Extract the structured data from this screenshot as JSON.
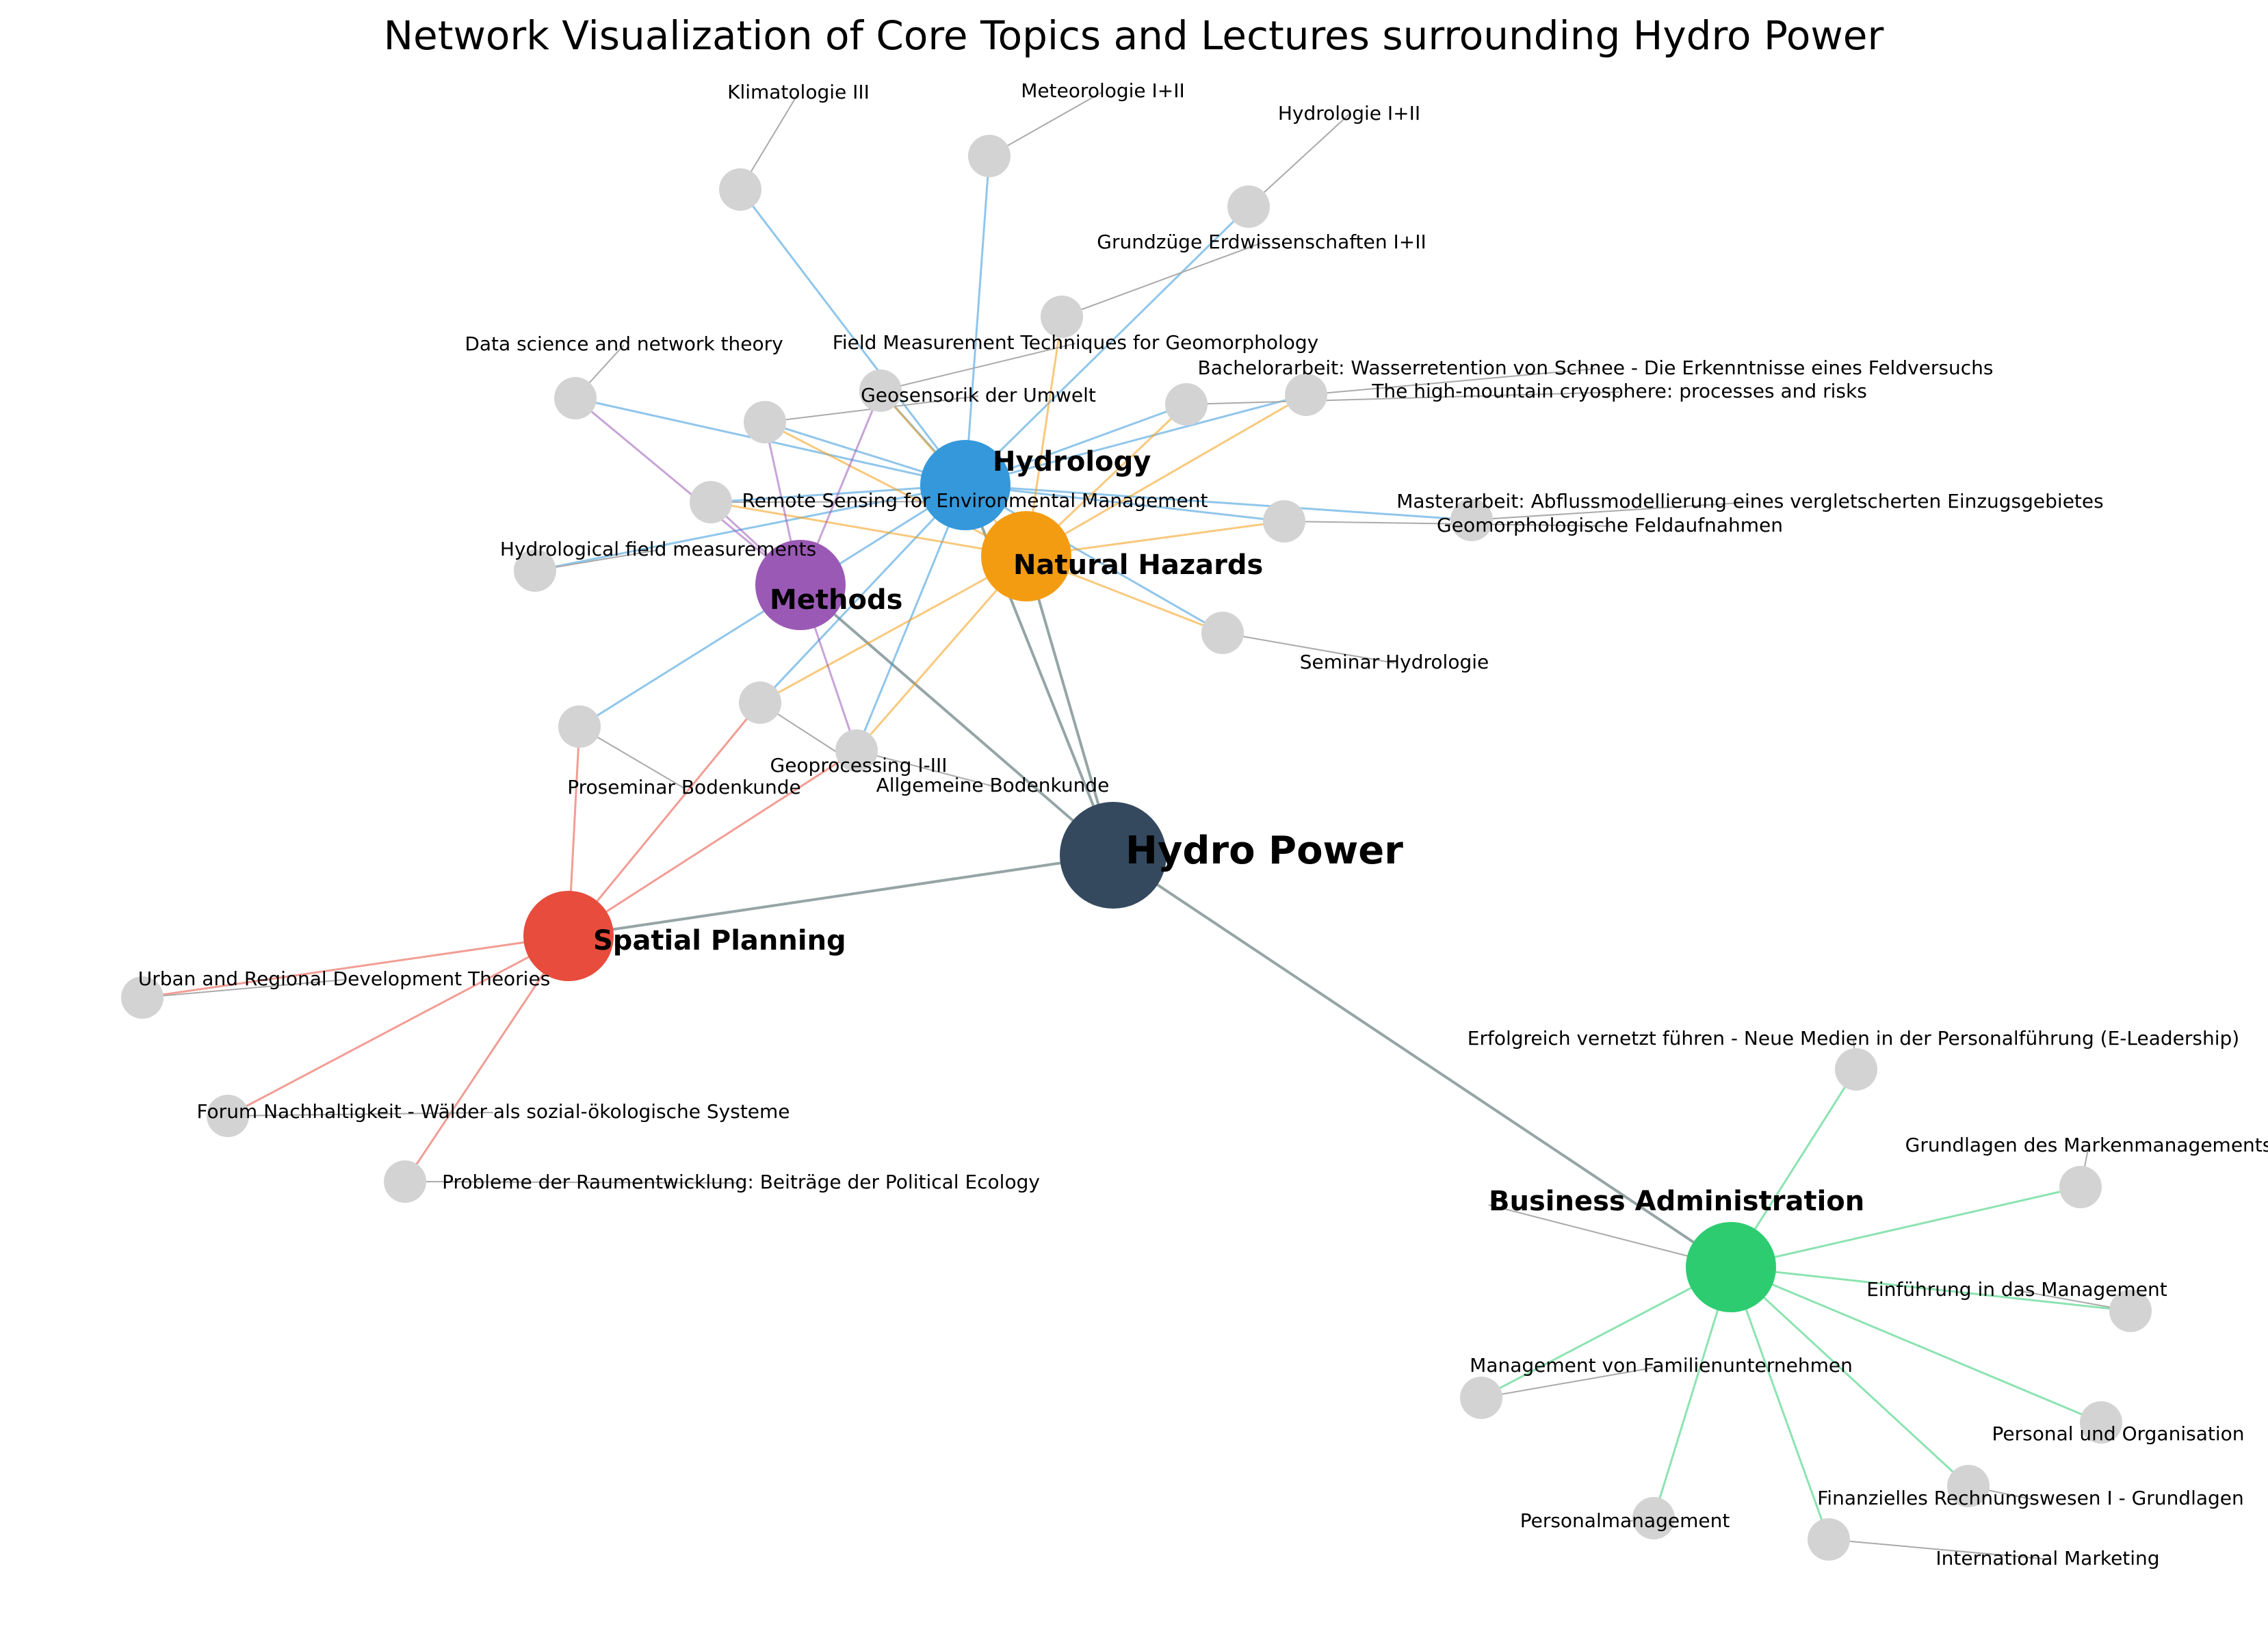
{
  "title": "Network Visualization of Core Topics and Lectures surrounding Hydro Power",
  "colors": {
    "hydro_power": "#34495e",
    "hydrology": "#3498db",
    "natural_hazards": "#f39c12",
    "methods": "#9b59b6",
    "spatial_planning": "#e74c3c",
    "business_administration": "#2ecc71",
    "lecture_node": "#d3d3d3",
    "core_edge": "#95a5a6",
    "leader_line": "#aaaaaa"
  },
  "root": {
    "id": "hp",
    "label": "Hydro Power"
  },
  "hubs": [
    {
      "id": "hyd",
      "label": "Hydrology",
      "color_key": "hydrology"
    },
    {
      "id": "nh",
      "label": "Natural Hazards",
      "color_key": "natural_hazards"
    },
    {
      "id": "met",
      "label": "Methods",
      "color_key": "methods"
    },
    {
      "id": "sp",
      "label": "Spatial Planning",
      "color_key": "spatial_planning"
    },
    {
      "id": "ba",
      "label": "Business Administration",
      "color_key": "business_administration"
    }
  ],
  "lectures": [
    {
      "id": "klima",
      "label": "Klimatologie III"
    },
    {
      "id": "meteo",
      "label": "Meteorologie I+II"
    },
    {
      "id": "hydro12",
      "label": "Hydrologie I+II"
    },
    {
      "id": "grundz",
      "label": "Grundzüge Erdwissenschaften I+II"
    },
    {
      "id": "fmt",
      "label": "Field Measurement Techniques for Geomorphology"
    },
    {
      "id": "geosens",
      "label": "Geosensorik der Umwelt"
    },
    {
      "id": "dsnt",
      "label": "Data science and network theory"
    },
    {
      "id": "bach",
      "label": "Bachelorarbeit: Wasserretention von Schnee - Die Erkenntnisse eines Feldversuchs"
    },
    {
      "id": "cryo",
      "label": "The high-mountain cryosphere: processes and risks"
    },
    {
      "id": "rsem",
      "label": "Remote Sensing for Environmental Management"
    },
    {
      "id": "master",
      "label": "Masterarbeit: Abflussmodellierung eines vergletscherten Einzugsgebietes"
    },
    {
      "id": "geomfeld",
      "label": "Geomorphologische Feldaufnahmen"
    },
    {
      "id": "hfm",
      "label": "Hydrological field measurements"
    },
    {
      "id": "seminar",
      "label": "Seminar Hydrologie"
    },
    {
      "id": "prosem",
      "label": "Proseminar Bodenkunde"
    },
    {
      "id": "geoproc",
      "label": "Geoprocessing I-III"
    },
    {
      "id": "allgboden",
      "label": "Allgemeine Bodenkunde"
    },
    {
      "id": "urban",
      "label": "Urban and Regional Development Theories"
    },
    {
      "id": "forum",
      "label": "Forum Nachhaltigkeit - Wälder als sozial-ökologische Systeme"
    },
    {
      "id": "probleme",
      "label": "Probleme der Raumentwicklung: Beiträge der Political Ecology"
    },
    {
      "id": "elead",
      "label": "Erfolgreich vernetzt führen - Neue Medien in der Personalführung (E-Leadership)"
    },
    {
      "id": "marken",
      "label": "Grundlagen des Markenmanagements"
    },
    {
      "id": "einf",
      "label": "Einführung in das Management"
    },
    {
      "id": "famil",
      "label": "Management von Familienunternehmen"
    },
    {
      "id": "persorg",
      "label": "Personal und Organisation"
    },
    {
      "id": "finanz",
      "label": "Finanzielles Rechnungswesen I - Grundlagen"
    },
    {
      "id": "persmgmt",
      "label": "Personalmanagement"
    },
    {
      "id": "intmark",
      "label": "International Marketing"
    }
  ],
  "edges": [
    [
      "hp",
      "hyd"
    ],
    [
      "hp",
      "nh"
    ],
    [
      "hp",
      "met"
    ],
    [
      "hp",
      "sp"
    ],
    [
      "hp",
      "ba"
    ],
    [
      "hyd",
      "klima"
    ],
    [
      "hyd",
      "meteo"
    ],
    [
      "hyd",
      "hydro12"
    ],
    [
      "hyd",
      "fmt"
    ],
    [
      "hyd",
      "geosens"
    ],
    [
      "hyd",
      "dsnt"
    ],
    [
      "hyd",
      "bach"
    ],
    [
      "hyd",
      "cryo"
    ],
    [
      "hyd",
      "rsem"
    ],
    [
      "hyd",
      "master"
    ],
    [
      "hyd",
      "geomfeld"
    ],
    [
      "hyd",
      "hfm"
    ],
    [
      "hyd",
      "seminar"
    ],
    [
      "hyd",
      "prosem"
    ],
    [
      "hyd",
      "geoproc"
    ],
    [
      "hyd",
      "allgboden"
    ],
    [
      "nh",
      "grundz"
    ],
    [
      "nh",
      "fmt"
    ],
    [
      "nh",
      "geosens"
    ],
    [
      "nh",
      "bach"
    ],
    [
      "nh",
      "cryo"
    ],
    [
      "nh",
      "rsem"
    ],
    [
      "nh",
      "geomfeld"
    ],
    [
      "nh",
      "seminar"
    ],
    [
      "nh",
      "geoproc"
    ],
    [
      "nh",
      "allgboden"
    ],
    [
      "met",
      "dsnt"
    ],
    [
      "met",
      "fmt"
    ],
    [
      "met",
      "geosens"
    ],
    [
      "met",
      "rsem"
    ],
    [
      "met",
      "allgboden"
    ],
    [
      "sp",
      "prosem"
    ],
    [
      "sp",
      "allgboden"
    ],
    [
      "sp",
      "geoproc"
    ],
    [
      "sp",
      "urban"
    ],
    [
      "sp",
      "forum"
    ],
    [
      "sp",
      "probleme"
    ],
    [
      "ba",
      "elead"
    ],
    [
      "ba",
      "marken"
    ],
    [
      "ba",
      "einf"
    ],
    [
      "ba",
      "famil"
    ],
    [
      "ba",
      "persorg"
    ],
    [
      "ba",
      "finanz"
    ],
    [
      "ba",
      "persmgmt"
    ],
    [
      "ba",
      "intmark"
    ]
  ]
}
